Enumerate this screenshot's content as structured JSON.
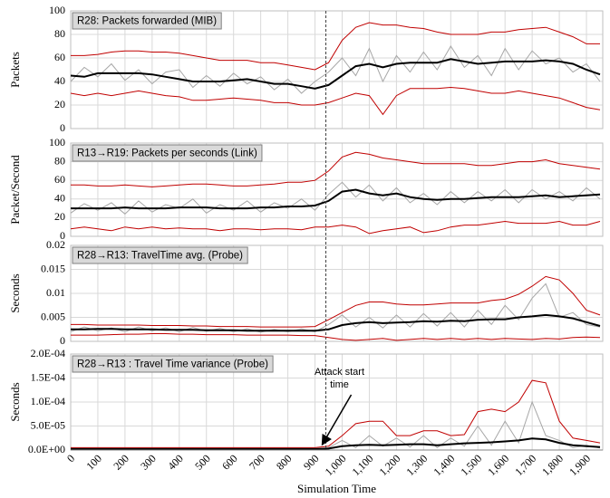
{
  "chart_data": [
    {
      "type": "line",
      "title": "R28: Packets forwarded (MIB)",
      "ylabel": "Packets",
      "ylim": [
        0,
        100
      ],
      "yticks": [
        0,
        20,
        40,
        60,
        80,
        100
      ],
      "grid": true,
      "series": [
        {
          "color": "#a6a6a6",
          "values": [
            40,
            52,
            44,
            55,
            41,
            50,
            38,
            48,
            50,
            35,
            45,
            36,
            47,
            38,
            44,
            33,
            42,
            30,
            40,
            48,
            60,
            45,
            68,
            40,
            62,
            48,
            65,
            50,
            70,
            52,
            62,
            45,
            68,
            50,
            66,
            55,
            60,
            48,
            55,
            40
          ]
        },
        {
          "color": "#c00000",
          "values": [
            62,
            62,
            63,
            65,
            66,
            66,
            65,
            65,
            64,
            62,
            60,
            58,
            58,
            58,
            56,
            56,
            54,
            52,
            50,
            56,
            75,
            86,
            90,
            88,
            88,
            86,
            85,
            82,
            80,
            80,
            80,
            82,
            82,
            84,
            85,
            86,
            82,
            78,
            72,
            72
          ]
        },
        {
          "color": "#c00000",
          "values": [
            30,
            28,
            30,
            28,
            30,
            32,
            30,
            28,
            27,
            24,
            24,
            25,
            26,
            25,
            24,
            22,
            22,
            20,
            20,
            22,
            26,
            30,
            28,
            12,
            28,
            34,
            34,
            34,
            35,
            34,
            32,
            30,
            30,
            32,
            30,
            28,
            26,
            22,
            18,
            16
          ]
        },
        {
          "color": "#000000",
          "values": [
            45,
            44,
            47,
            47,
            47,
            47,
            46,
            44,
            42,
            40,
            40,
            40,
            41,
            42,
            40,
            38,
            38,
            36,
            34,
            37,
            45,
            53,
            55,
            52,
            55,
            56,
            56,
            56,
            59,
            57,
            55,
            56,
            57,
            57,
            57,
            58,
            57,
            55,
            50,
            46
          ]
        }
      ]
    },
    {
      "type": "line",
      "title": "R13→R19: Packets per seconds (Link)",
      "ylabel": "Packet/Second",
      "ylim": [
        0,
        100
      ],
      "yticks": [
        0,
        20,
        40,
        60,
        80,
        100
      ],
      "grid": true,
      "series": [
        {
          "color": "#a6a6a6",
          "values": [
            25,
            35,
            28,
            36,
            24,
            38,
            26,
            34,
            30,
            40,
            25,
            34,
            28,
            38,
            26,
            36,
            30,
            40,
            28,
            45,
            58,
            42,
            55,
            38,
            52,
            36,
            46,
            34,
            48,
            36,
            48,
            38,
            50,
            36,
            50,
            40,
            48,
            38,
            52,
            40
          ]
        },
        {
          "color": "#c00000",
          "values": [
            55,
            55,
            54,
            54,
            55,
            54,
            53,
            54,
            55,
            56,
            56,
            55,
            54,
            54,
            55,
            56,
            58,
            58,
            60,
            70,
            85,
            90,
            88,
            84,
            82,
            80,
            78,
            78,
            78,
            78,
            76,
            76,
            78,
            80,
            80,
            82,
            78,
            76,
            74,
            72
          ]
        },
        {
          "color": "#c00000",
          "values": [
            8,
            10,
            8,
            6,
            10,
            8,
            10,
            8,
            9,
            8,
            8,
            6,
            8,
            8,
            7,
            8,
            8,
            7,
            10,
            10,
            12,
            10,
            3,
            6,
            8,
            10,
            4,
            6,
            10,
            12,
            12,
            14,
            16,
            14,
            14,
            14,
            16,
            12,
            12,
            16
          ]
        },
        {
          "color": "#000000",
          "values": [
            30,
            30,
            30,
            30,
            31,
            30,
            30,
            30,
            31,
            31,
            31,
            30,
            30,
            30,
            31,
            31,
            32,
            32,
            33,
            38,
            48,
            50,
            46,
            44,
            46,
            42,
            40,
            39,
            40,
            40,
            41,
            42,
            42,
            42,
            43,
            44,
            42,
            43,
            44,
            45
          ]
        }
      ]
    },
    {
      "type": "line",
      "title": "R28→R13: TravelTime avg. (Probe)",
      "ylabel": "Seconds",
      "ylim": [
        0,
        0.02
      ],
      "yticks": [
        0,
        0.005,
        0.01,
        0.015,
        0.02
      ],
      "grid": true,
      "series": [
        {
          "color": "#a6a6a6",
          "values": [
            0.002,
            0.003,
            0.0022,
            0.0028,
            0.002,
            0.003,
            0.0022,
            0.0028,
            0.002,
            0.0029,
            0.0021,
            0.0027,
            0.002,
            0.0026,
            0.0019,
            0.0025,
            0.002,
            0.0026,
            0.002,
            0.0035,
            0.0055,
            0.003,
            0.005,
            0.0028,
            0.0055,
            0.003,
            0.0058,
            0.0032,
            0.006,
            0.003,
            0.0065,
            0.0035,
            0.0075,
            0.0045,
            0.009,
            0.012,
            0.005,
            0.006,
            0.0035,
            0.003
          ]
        },
        {
          "color": "#c00000",
          "values": [
            0.0035,
            0.0035,
            0.0034,
            0.0034,
            0.0034,
            0.0034,
            0.0033,
            0.0033,
            0.0033,
            0.0032,
            0.0032,
            0.0031,
            0.0031,
            0.0031,
            0.003,
            0.003,
            0.003,
            0.003,
            0.0031,
            0.0045,
            0.006,
            0.0075,
            0.0082,
            0.0082,
            0.0078,
            0.0076,
            0.0076,
            0.0078,
            0.008,
            0.008,
            0.008,
            0.0085,
            0.0088,
            0.0098,
            0.0115,
            0.0135,
            0.0128,
            0.01,
            0.0065,
            0.0055
          ]
        },
        {
          "color": "#c00000",
          "values": [
            0.0013,
            0.0013,
            0.0013,
            0.0014,
            0.0015,
            0.0015,
            0.0016,
            0.0016,
            0.0015,
            0.0015,
            0.0014,
            0.0014,
            0.0014,
            0.0013,
            0.0013,
            0.0013,
            0.0013,
            0.0012,
            0.0012,
            0.0008,
            0.0004,
            0.0002,
            0.0004,
            0.0006,
            0.0002,
            0.0004,
            0.0006,
            0.0004,
            0.0006,
            0.0004,
            0.0006,
            0.0004,
            0.0006,
            0.0005,
            0.0004,
            0.0006,
            0.0005,
            0.0008,
            0.0009,
            0.0008
          ]
        },
        {
          "color": "#000000",
          "values": [
            0.0025,
            0.0025,
            0.0026,
            0.0026,
            0.0025,
            0.0025,
            0.0025,
            0.0024,
            0.0024,
            0.0024,
            0.0023,
            0.0023,
            0.0023,
            0.0022,
            0.0022,
            0.0022,
            0.0022,
            0.0022,
            0.0022,
            0.0025,
            0.0034,
            0.0038,
            0.004,
            0.0038,
            0.0039,
            0.004,
            0.0042,
            0.0041,
            0.0043,
            0.0042,
            0.0045,
            0.0046,
            0.0046,
            0.005,
            0.0052,
            0.0055,
            0.0052,
            0.0048,
            0.004,
            0.0032
          ]
        }
      ]
    },
    {
      "type": "line",
      "title": "R28→R13 :  Travel Time variance (Probe)",
      "ylabel": "Seconds",
      "xlabel": "Simulation Time",
      "ylim": [
        0,
        0.0002
      ],
      "yticks": [
        {
          "value": 0,
          "label": "0.0E+00"
        },
        {
          "value": 5e-05,
          "label": "5.0E-05"
        },
        {
          "value": 0.0001,
          "label": "1.0E-04"
        },
        {
          "value": 0.00015,
          "label": "1.5E-04"
        },
        {
          "value": 0.0002,
          "label": "2.0E-04"
        }
      ],
      "grid": true,
      "xlim": [
        0,
        1960
      ],
      "xticks": [
        0,
        100,
        200,
        300,
        400,
        500,
        600,
        700,
        800,
        900,
        {
          "value": 1000,
          "label": "1,000"
        },
        {
          "value": 1100,
          "label": "1,100"
        },
        {
          "value": 1200,
          "label": "1,200"
        },
        {
          "value": 1300,
          "label": "1,300"
        },
        {
          "value": 1400,
          "label": "1,400"
        },
        {
          "value": 1500,
          "label": "1,500"
        },
        {
          "value": 1600,
          "label": "1,600"
        },
        {
          "value": 1700,
          "label": "1,700"
        },
        {
          "value": 1800,
          "label": "1,800"
        },
        {
          "value": 1900,
          "label": "1,900"
        }
      ],
      "x": [
        0,
        50,
        100,
        150,
        200,
        250,
        300,
        350,
        400,
        450,
        500,
        550,
        600,
        650,
        700,
        750,
        800,
        850,
        900,
        950,
        1000,
        1050,
        1100,
        1150,
        1200,
        1250,
        1300,
        1350,
        1400,
        1450,
        1500,
        1550,
        1600,
        1650,
        1700,
        1750,
        1800,
        1850,
        1900,
        1950
      ],
      "annotation": {
        "text": "Attack start time",
        "x": 940
      },
      "series": [
        {
          "color": "#a6a6a6",
          "values": [
            1e-06,
            3e-06,
            1e-06,
            3e-06,
            1e-06,
            3e-06,
            1e-06,
            3e-06,
            1e-06,
            3e-06,
            1e-06,
            3e-06,
            1e-06,
            3e-06,
            1e-06,
            3e-06,
            1e-06,
            3e-06,
            1e-06,
            5e-06,
            2e-05,
            5e-06,
            3e-05,
            8e-06,
            2.5e-05,
            6e-06,
            3e-05,
            5e-06,
            2.5e-05,
            8e-06,
            5e-05,
            1e-05,
            6e-05,
            1.5e-05,
            0.0001,
            3e-05,
            2e-05,
            5e-06,
            1e-05,
            4e-06
          ]
        },
        {
          "color": "#c00000",
          "values": [
            5e-06,
            5e-06,
            5e-06,
            5e-06,
            5e-06,
            5e-06,
            5e-06,
            5e-06,
            5e-06,
            5e-06,
            5e-06,
            5e-06,
            5e-06,
            5e-06,
            5e-06,
            5e-06,
            5e-06,
            5e-06,
            5e-06,
            8e-06,
            3e-05,
            5.5e-05,
            6e-05,
            6e-05,
            3e-05,
            3e-05,
            4e-05,
            4e-05,
            3e-05,
            3.2e-05,
            8e-05,
            8.5e-05,
            8e-05,
            0.0001,
            0.000145,
            0.00014,
            6e-05,
            2.5e-05,
            2e-05,
            1.5e-05
          ]
        },
        {
          "color": "#c00000",
          "values": [
            0,
            0,
            0,
            0,
            0,
            0,
            0,
            0,
            0,
            0,
            0,
            0,
            0,
            0,
            0,
            0,
            0,
            0,
            0,
            0,
            0,
            0,
            0,
            0,
            0,
            0,
            0,
            0,
            0,
            0,
            0,
            0,
            0,
            0,
            0,
            0,
            0,
            0,
            0,
            0
          ]
        },
        {
          "color": "#000000",
          "values": [
            2e-06,
            2e-06,
            2e-06,
            2e-06,
            2e-06,
            2e-06,
            2e-06,
            2e-06,
            2e-06,
            2e-06,
            2e-06,
            2e-06,
            2e-06,
            2e-06,
            2e-06,
            2e-06,
            2e-06,
            2e-06,
            2e-06,
            3e-06,
            8e-06,
            1e-05,
            1.1e-05,
            1e-05,
            1.1e-05,
            1.2e-05,
            1.2e-05,
            1e-05,
            1.2e-05,
            1.4e-05,
            1.5e-05,
            1.6e-05,
            1.8e-05,
            2e-05,
            2.4e-05,
            2.2e-05,
            1.5e-05,
            1e-05,
            8e-06,
            6e-06
          ]
        }
      ]
    }
  ]
}
